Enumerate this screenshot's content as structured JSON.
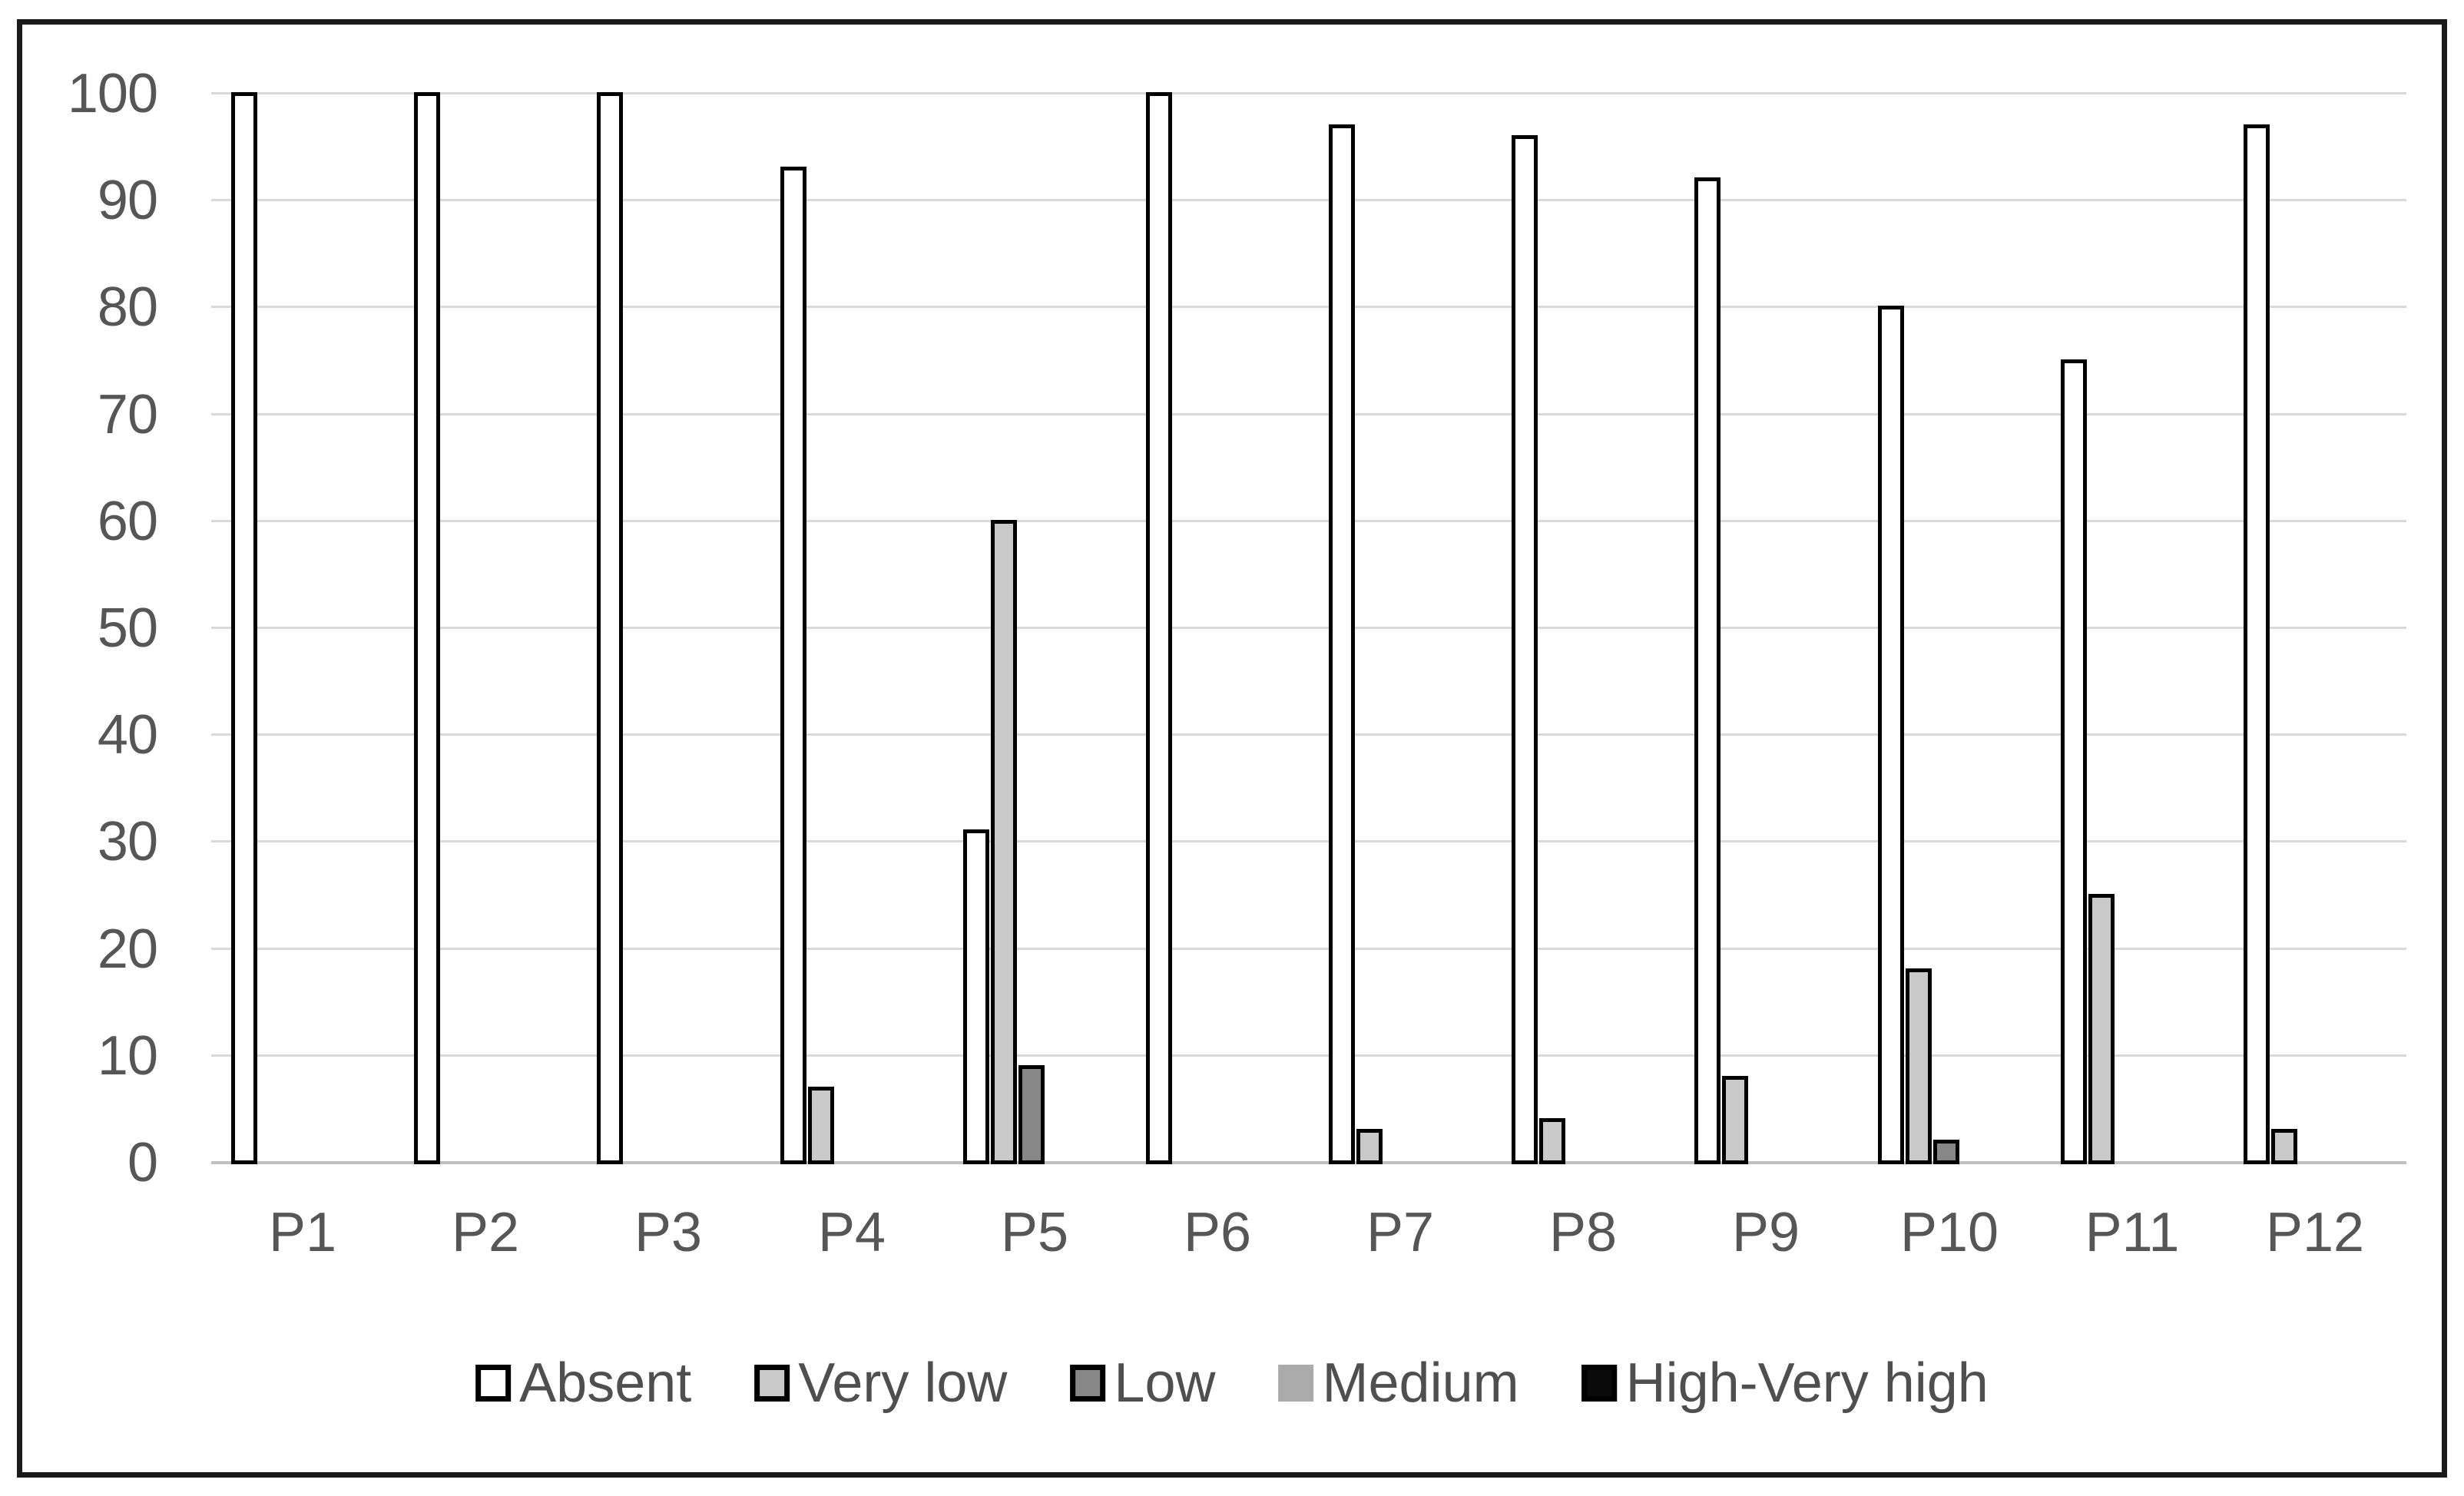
{
  "chart_data": {
    "type": "bar",
    "title": "",
    "xlabel": "",
    "ylabel": "",
    "categories": [
      "P1",
      "P2",
      "P3",
      "P4",
      "P5",
      "P6",
      "P7",
      "P8",
      "P9",
      "P10",
      "P11",
      "P12"
    ],
    "series": [
      {
        "name": "Absent",
        "fill": "#ffffff",
        "border": "#000000",
        "values": [
          100,
          100,
          100,
          93,
          31,
          100,
          97,
          96,
          92,
          80,
          75,
          97
        ]
      },
      {
        "name": "Very low",
        "fill": "#c9c9c9",
        "border": "#000000",
        "values": [
          0,
          0,
          0,
          7,
          60,
          0,
          3,
          4,
          8,
          18,
          25,
          3
        ]
      },
      {
        "name": "Low",
        "fill": "#878787",
        "border": "#000000",
        "values": [
          0,
          0,
          0,
          0,
          9,
          0,
          0,
          0,
          0,
          2,
          0,
          0
        ]
      },
      {
        "name": "Medium",
        "fill": "#ababab",
        "border": null,
        "values": [
          0,
          0,
          0,
          0,
          0,
          0,
          0,
          0,
          0,
          0,
          0,
          0
        ]
      },
      {
        "name": "High-Very high",
        "fill": "#0a0a0a",
        "border": "#000000",
        "values": [
          0,
          0,
          0,
          0,
          0,
          0,
          0,
          0,
          0,
          0,
          0,
          0
        ]
      }
    ],
    "ylim": [
      0,
      100
    ],
    "ytick_step": 10,
    "ytick_labels": [
      "0",
      "10",
      "20",
      "30",
      "40",
      "50",
      "60",
      "70",
      "80",
      "90",
      "100"
    ],
    "grid": "horizontal",
    "legend_position": "bottom"
  },
  "style": {
    "frame_border": "#1a1a1a",
    "gridline": "#d9d9d9",
    "axis_line": "#bfbfbf",
    "tick_label_color": "#565656",
    "legend_text_color": "#4f4f4f",
    "bar_border": "#000000",
    "background": "#ffffff"
  }
}
